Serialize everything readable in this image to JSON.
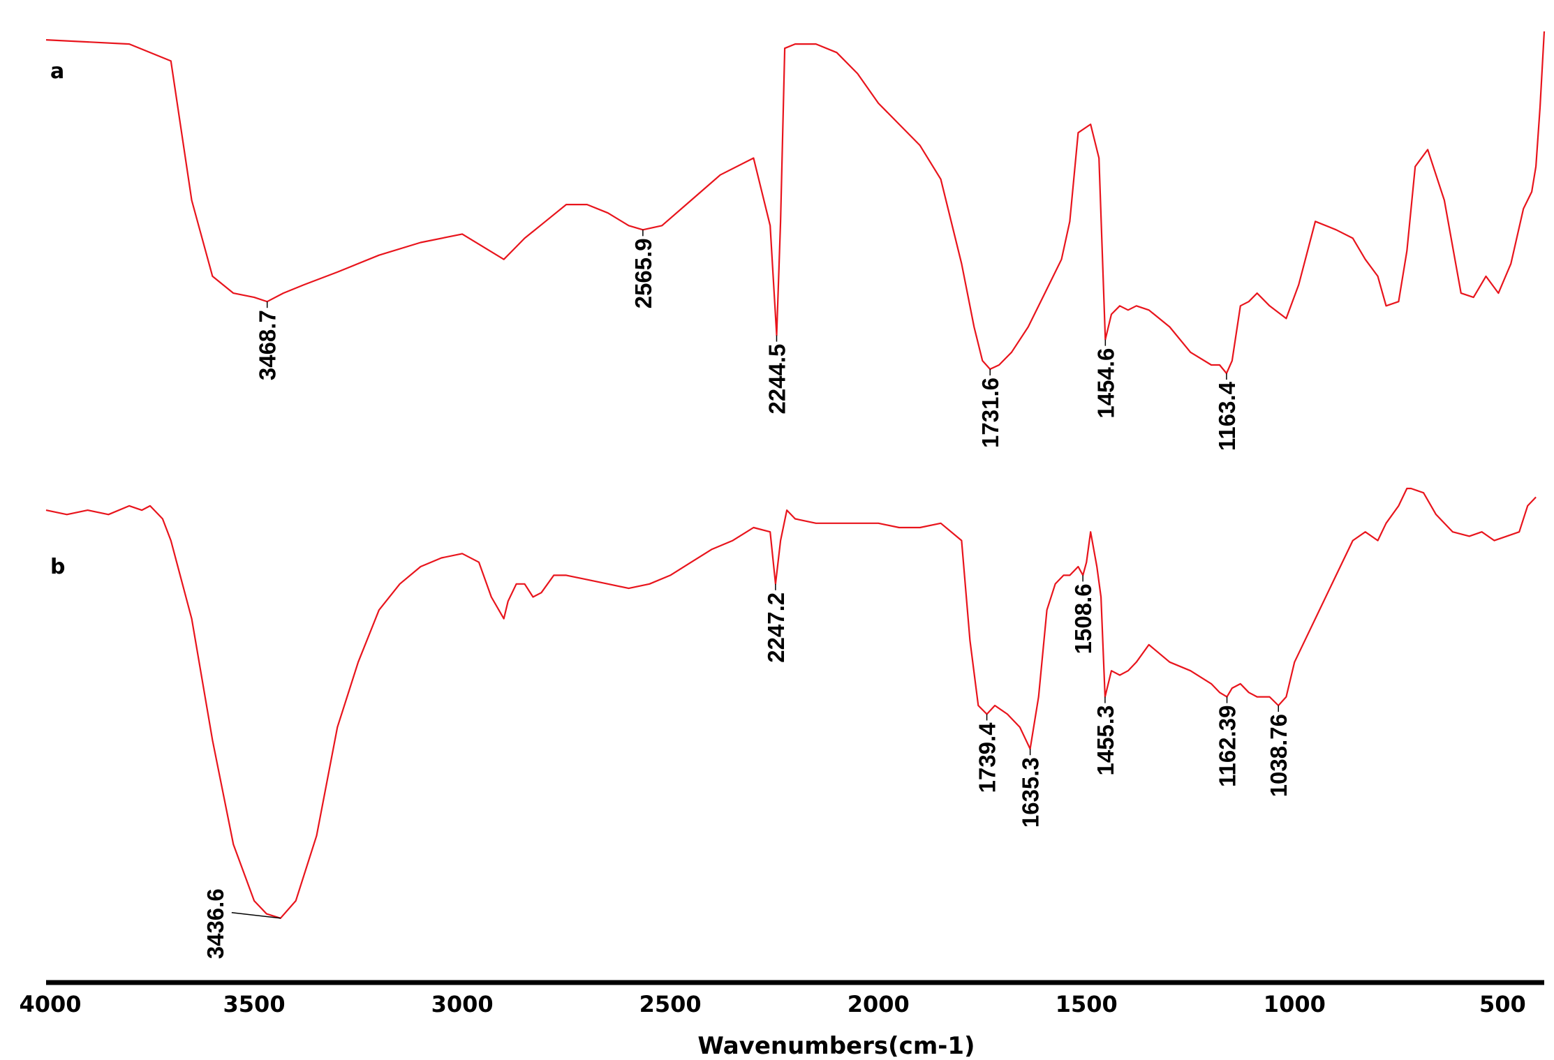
{
  "chart_data": {
    "type": "line",
    "title": "",
    "xlabel": "Wavenumbers(cm-1)",
    "ylabel": "",
    "xlim": [
      4000,
      400
    ],
    "x_reversed": true,
    "x_ticks": [
      {
        "value": 4000,
        "label": "4000"
      },
      {
        "value": 3500,
        "label": "3500"
      },
      {
        "value": 3000,
        "label": "3000"
      },
      {
        "value": 2500,
        "label": "2500"
      },
      {
        "value": 2000,
        "label": "2000"
      },
      {
        "value": 1500,
        "label": "1500"
      },
      {
        "value": 1000,
        "label": "1000"
      },
      {
        "value": 500,
        "label": "500"
      }
    ],
    "y_axis_shown": false,
    "grid": false,
    "line_color": "#e8141c",
    "series": [
      {
        "name": "a",
        "x": [
          4000,
          3800,
          3700,
          3650,
          3600,
          3550,
          3500,
          3468.7,
          3430,
          3380,
          3300,
          3200,
          3100,
          3000,
          2950,
          2900,
          2880,
          2850,
          2800,
          2750,
          2700,
          2650,
          2600,
          2565.9,
          2520,
          2450,
          2380,
          2300,
          2260,
          2244.5,
          2235,
          2225,
          2200,
          2150,
          2100,
          2050,
          2000,
          1950,
          1900,
          1850,
          1800,
          1770,
          1750,
          1731.6,
          1710,
          1680,
          1640,
          1600,
          1560,
          1540,
          1520,
          1490,
          1470,
          1454.6,
          1440,
          1420,
          1400,
          1380,
          1350,
          1300,
          1250,
          1200,
          1180,
          1163.4,
          1150,
          1130,
          1110,
          1090,
          1060,
          1020,
          990,
          950,
          900,
          860,
          830,
          800,
          780,
          750,
          730,
          710,
          680,
          640,
          600,
          570,
          540,
          510,
          480,
          450,
          430,
          420,
          410,
          400
        ],
        "y": [
          98,
          97,
          93,
          60,
          42,
          38,
          37,
          36,
          38,
          40,
          43,
          47,
          50,
          52,
          49,
          46,
          48,
          51,
          55,
          59,
          59,
          57,
          54,
          53,
          54,
          60,
          66,
          70,
          54,
          28,
          55,
          96,
          97,
          97,
          95,
          90,
          83,
          78,
          73,
          65,
          45,
          30,
          22,
          20,
          21,
          24,
          30,
          38,
          46,
          55,
          76,
          78,
          70,
          27,
          33,
          35,
          34,
          35,
          34,
          30,
          24,
          21,
          21,
          19,
          22,
          35,
          36,
          38,
          35,
          32,
          40,
          55,
          53,
          51,
          46,
          42,
          35,
          36,
          48,
          68,
          72,
          60,
          38,
          37,
          42,
          38,
          45,
          58,
          62,
          68,
          82,
          100
        ]
      },
      {
        "name": "b",
        "x": [
          4000,
          3950,
          3900,
          3850,
          3800,
          3770,
          3750,
          3720,
          3700,
          3650,
          3600,
          3550,
          3500,
          3470,
          3436.6,
          3400,
          3350,
          3300,
          3250,
          3200,
          3150,
          3100,
          3050,
          3000,
          2960,
          2930,
          2900,
          2890,
          2870,
          2850,
          2830,
          2810,
          2780,
          2750,
          2700,
          2650,
          2600,
          2550,
          2500,
          2450,
          2400,
          2350,
          2300,
          2260,
          2247.2,
          2235,
          2220,
          2200,
          2150,
          2100,
          2050,
          2000,
          1950,
          1900,
          1850,
          1800,
          1780,
          1760,
          1739.4,
          1720,
          1690,
          1660,
          1635.3,
          1615,
          1595,
          1575,
          1555,
          1540,
          1520,
          1508.6,
          1500,
          1490,
          1475,
          1465,
          1455.3,
          1440,
          1420,
          1400,
          1380,
          1350,
          1300,
          1250,
          1200,
          1180,
          1162.39,
          1150,
          1130,
          1110,
          1090,
          1060,
          1038.76,
          1020,
          1000,
          950,
          900,
          860,
          830,
          800,
          780,
          750,
          730,
          720,
          690,
          660,
          620,
          580,
          550,
          520,
          490,
          460,
          440,
          420
        ],
        "y": [
          95,
          94,
          95,
          94,
          96,
          95,
          96,
          93,
          88,
          70,
          42,
          18,
          5,
          2,
          1,
          5,
          20,
          45,
          60,
          72,
          78,
          82,
          84,
          85,
          83,
          75,
          70,
          74,
          78,
          78,
          75,
          76,
          80,
          80,
          79,
          78,
          77,
          78,
          80,
          83,
          86,
          88,
          91,
          90,
          78,
          88,
          95,
          93,
          92,
          92,
          92,
          92,
          91,
          91,
          92,
          88,
          65,
          50,
          48,
          50,
          48,
          45,
          40,
          52,
          72,
          78,
          80,
          80,
          82,
          80,
          83,
          90,
          82,
          75,
          52,
          58,
          57,
          58,
          60,
          64,
          60,
          58,
          55,
          53,
          52,
          54,
          55,
          53,
          52,
          52,
          50,
          52,
          60,
          70,
          80,
          88,
          90,
          88,
          92,
          96,
          100,
          100,
          99,
          94,
          90,
          89,
          90,
          88,
          89,
          90,
          96,
          98
        ]
      }
    ],
    "peak_labels": [
      {
        "series": "a",
        "wavenumber": 3468.7,
        "label": "3468.7"
      },
      {
        "series": "a",
        "wavenumber": 2565.9,
        "label": "2565.9"
      },
      {
        "series": "a",
        "wavenumber": 2244.5,
        "label": "2244.5"
      },
      {
        "series": "a",
        "wavenumber": 1731.6,
        "label": "1731.6"
      },
      {
        "series": "a",
        "wavenumber": 1454.6,
        "label": "1454.6"
      },
      {
        "series": "a",
        "wavenumber": 1163.4,
        "label": "1163.4"
      },
      {
        "series": "b",
        "wavenumber": 3436.6,
        "label": "3436.6"
      },
      {
        "series": "b",
        "wavenumber": 2247.2,
        "label": "2247.2"
      },
      {
        "series": "b",
        "wavenumber": 1739.4,
        "label": "1739.4"
      },
      {
        "series": "b",
        "wavenumber": 1635.3,
        "label": "1635.3"
      },
      {
        "series": "b",
        "wavenumber": 1508.6,
        "label": "1508.6"
      },
      {
        "series": "b",
        "wavenumber": 1455.3,
        "label": "1455.3"
      },
      {
        "series": "b",
        "wavenumber": 1162.39,
        "label": "1162.39"
      },
      {
        "series": "b",
        "wavenumber": 1038.76,
        "label": "1038.76"
      }
    ]
  }
}
